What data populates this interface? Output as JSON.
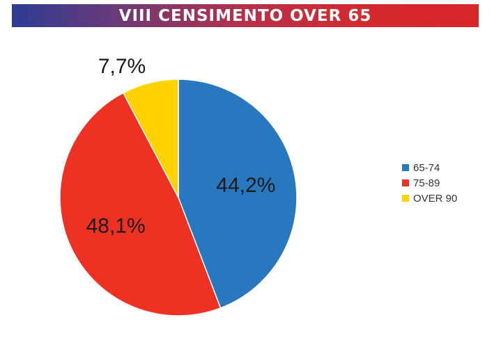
{
  "header": {
    "title": "VIII CENSIMENTO OVER 65"
  },
  "chart_data": {
    "type": "pie",
    "title": "",
    "slices": [
      {
        "label": "65-74",
        "value": 44.2,
        "display": "44,2%",
        "color": "#2878c0"
      },
      {
        "label": "75-89",
        "value": 48.1,
        "display": "48,1%",
        "color": "#ee3123"
      },
      {
        "label": "OVER 90",
        "value": 7.7,
        "display": "7,7%",
        "color": "#ffd200"
      }
    ],
    "start": "12 o'clock",
    "direction": "clockwise",
    "legend_position": "right"
  }
}
